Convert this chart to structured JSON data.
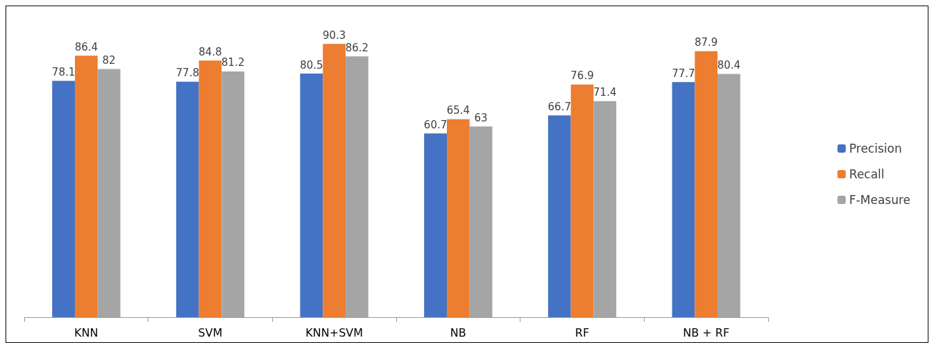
{
  "chart_data": {
    "type": "bar",
    "categories": [
      "KNN",
      "SVM",
      "KNN+SVM",
      "NB",
      "RF",
      "NB + RF"
    ],
    "series": [
      {
        "name": "Precision",
        "color": "#4472c4",
        "values": [
          78.1,
          77.8,
          80.5,
          60.7,
          66.7,
          77.7
        ]
      },
      {
        "name": "Recall",
        "color": "#ed7d31",
        "values": [
          86.4,
          84.8,
          90.3,
          65.4,
          76.9,
          87.9
        ]
      },
      {
        "name": "F-Measure",
        "color": "#a5a5a5",
        "values": [
          82,
          81.2,
          86.2,
          63,
          71.4,
          80.4
        ]
      }
    ],
    "data_labels": true,
    "legend": "right",
    "grid": false,
    "tick_labels": "x"
  }
}
